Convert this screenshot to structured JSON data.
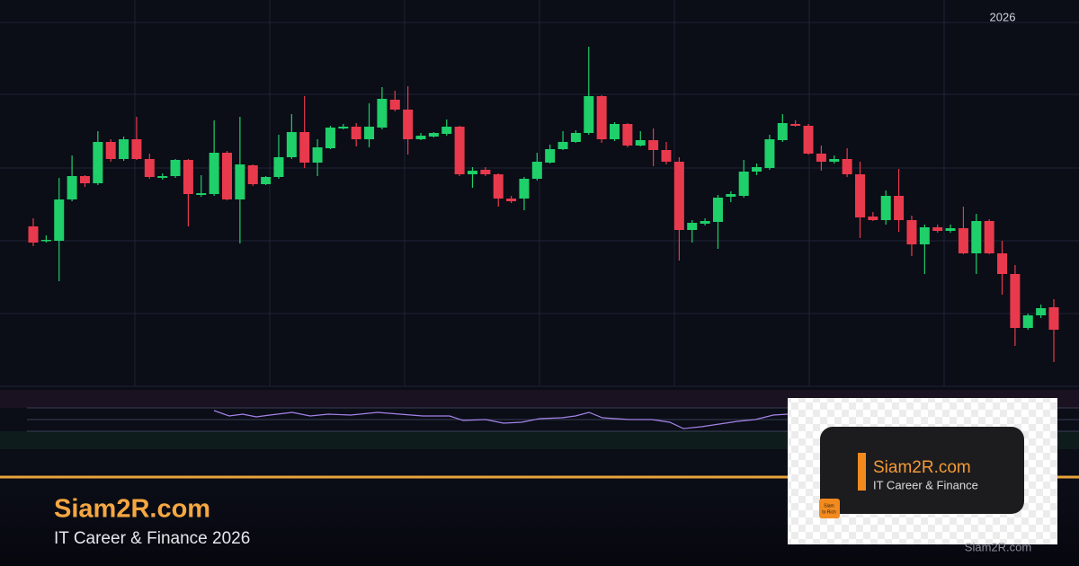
{
  "chart_data": {
    "type": "candlestick",
    "x_label": "2026",
    "open": [
      178,
      162,
      162,
      208,
      234,
      226,
      272,
      253,
      275,
      253,
      232,
      234,
      252,
      213,
      214,
      260,
      208,
      246,
      225,
      233,
      255,
      283,
      249,
      265,
      287,
      289,
      275,
      288,
      319,
      308,
      275,
      278,
      281,
      289,
      236,
      241,
      236,
      209,
      209,
      231,
      249,
      264,
      272,
      282,
      323,
      275,
      292,
      268,
      274,
      263,
      250,
      174,
      181,
      183,
      211,
      212,
      239,
      243,
      274,
      292,
      290,
      259,
      250,
      253,
      236,
      189,
      185,
      212,
      185,
      158,
      177,
      173,
      176,
      148,
      184,
      148,
      125,
      65,
      79,
      88
    ],
    "high": [
      187,
      168,
      232,
      257,
      235,
      284,
      275,
      278,
      300,
      259,
      237,
      253,
      253,
      235,
      296,
      262,
      300,
      247,
      234,
      280,
      303,
      323,
      275,
      290,
      292,
      293,
      315,
      333,
      329,
      334,
      282,
      283,
      297,
      290,
      244,
      244,
      237,
      212,
      233,
      260,
      269,
      284,
      285,
      378,
      324,
      294,
      293,
      284,
      287,
      272,
      255,
      185,
      187,
      213,
      217,
      252,
      248,
      280,
      303,
      296,
      292,
      268,
      257,
      265,
      250,
      194,
      218,
      242,
      190,
      180,
      180,
      180,
      200,
      192,
      186,
      162,
      135,
      81,
      91,
      97
    ],
    "low": [
      156,
      160,
      117,
      206,
      222,
      224,
      250,
      251,
      252,
      231,
      230,
      232,
      178,
      211,
      212,
      207,
      159,
      223,
      224,
      231,
      253,
      243,
      234,
      264,
      286,
      267,
      266,
      286,
      306,
      258,
      274,
      277,
      279,
      234,
      221,
      234,
      200,
      204,
      196,
      229,
      248,
      263,
      271,
      280,
      271,
      273,
      266,
      267,
      245,
      247,
      140,
      160,
      179,
      153,
      205,
      210,
      235,
      241,
      272,
      289,
      258,
      240,
      248,
      233,
      165,
      184,
      180,
      172,
      145,
      125,
      171,
      171,
      147,
      125,
      147,
      102,
      45,
      63,
      76,
      27
    ],
    "close": [
      160,
      163,
      208,
      234,
      226,
      272,
      253,
      275,
      253,
      233,
      234,
      252,
      214,
      215,
      260,
      208,
      247,
      225,
      233,
      255,
      283,
      249,
      266,
      288,
      289,
      275,
      289,
      320,
      308,
      275,
      279,
      282,
      289,
      236,
      240,
      236,
      209,
      206,
      231,
      250,
      264,
      272,
      282,
      323,
      275,
      292,
      268,
      274,
      263,
      250,
      174,
      182,
      184,
      210,
      214,
      239,
      244,
      275,
      293,
      290,
      259,
      250,
      253,
      236,
      188,
      185,
      212,
      185,
      158,
      177,
      173,
      176,
      148,
      184,
      148,
      125,
      65,
      79,
      87,
      63
    ],
    "ylim": [
      0,
      430
    ],
    "grid": true,
    "up_color": "#1fcf6a",
    "down_color": "#e83a4c"
  },
  "brand": {
    "title": "Siam2R.com",
    "subtitle": "IT Career & Finance 2026"
  },
  "logo": {
    "title": "Siam2R.com",
    "subtitle": "IT Career & Finance",
    "badge": [
      "Siam",
      "to Rich"
    ]
  },
  "footer": "Siam2R.com"
}
